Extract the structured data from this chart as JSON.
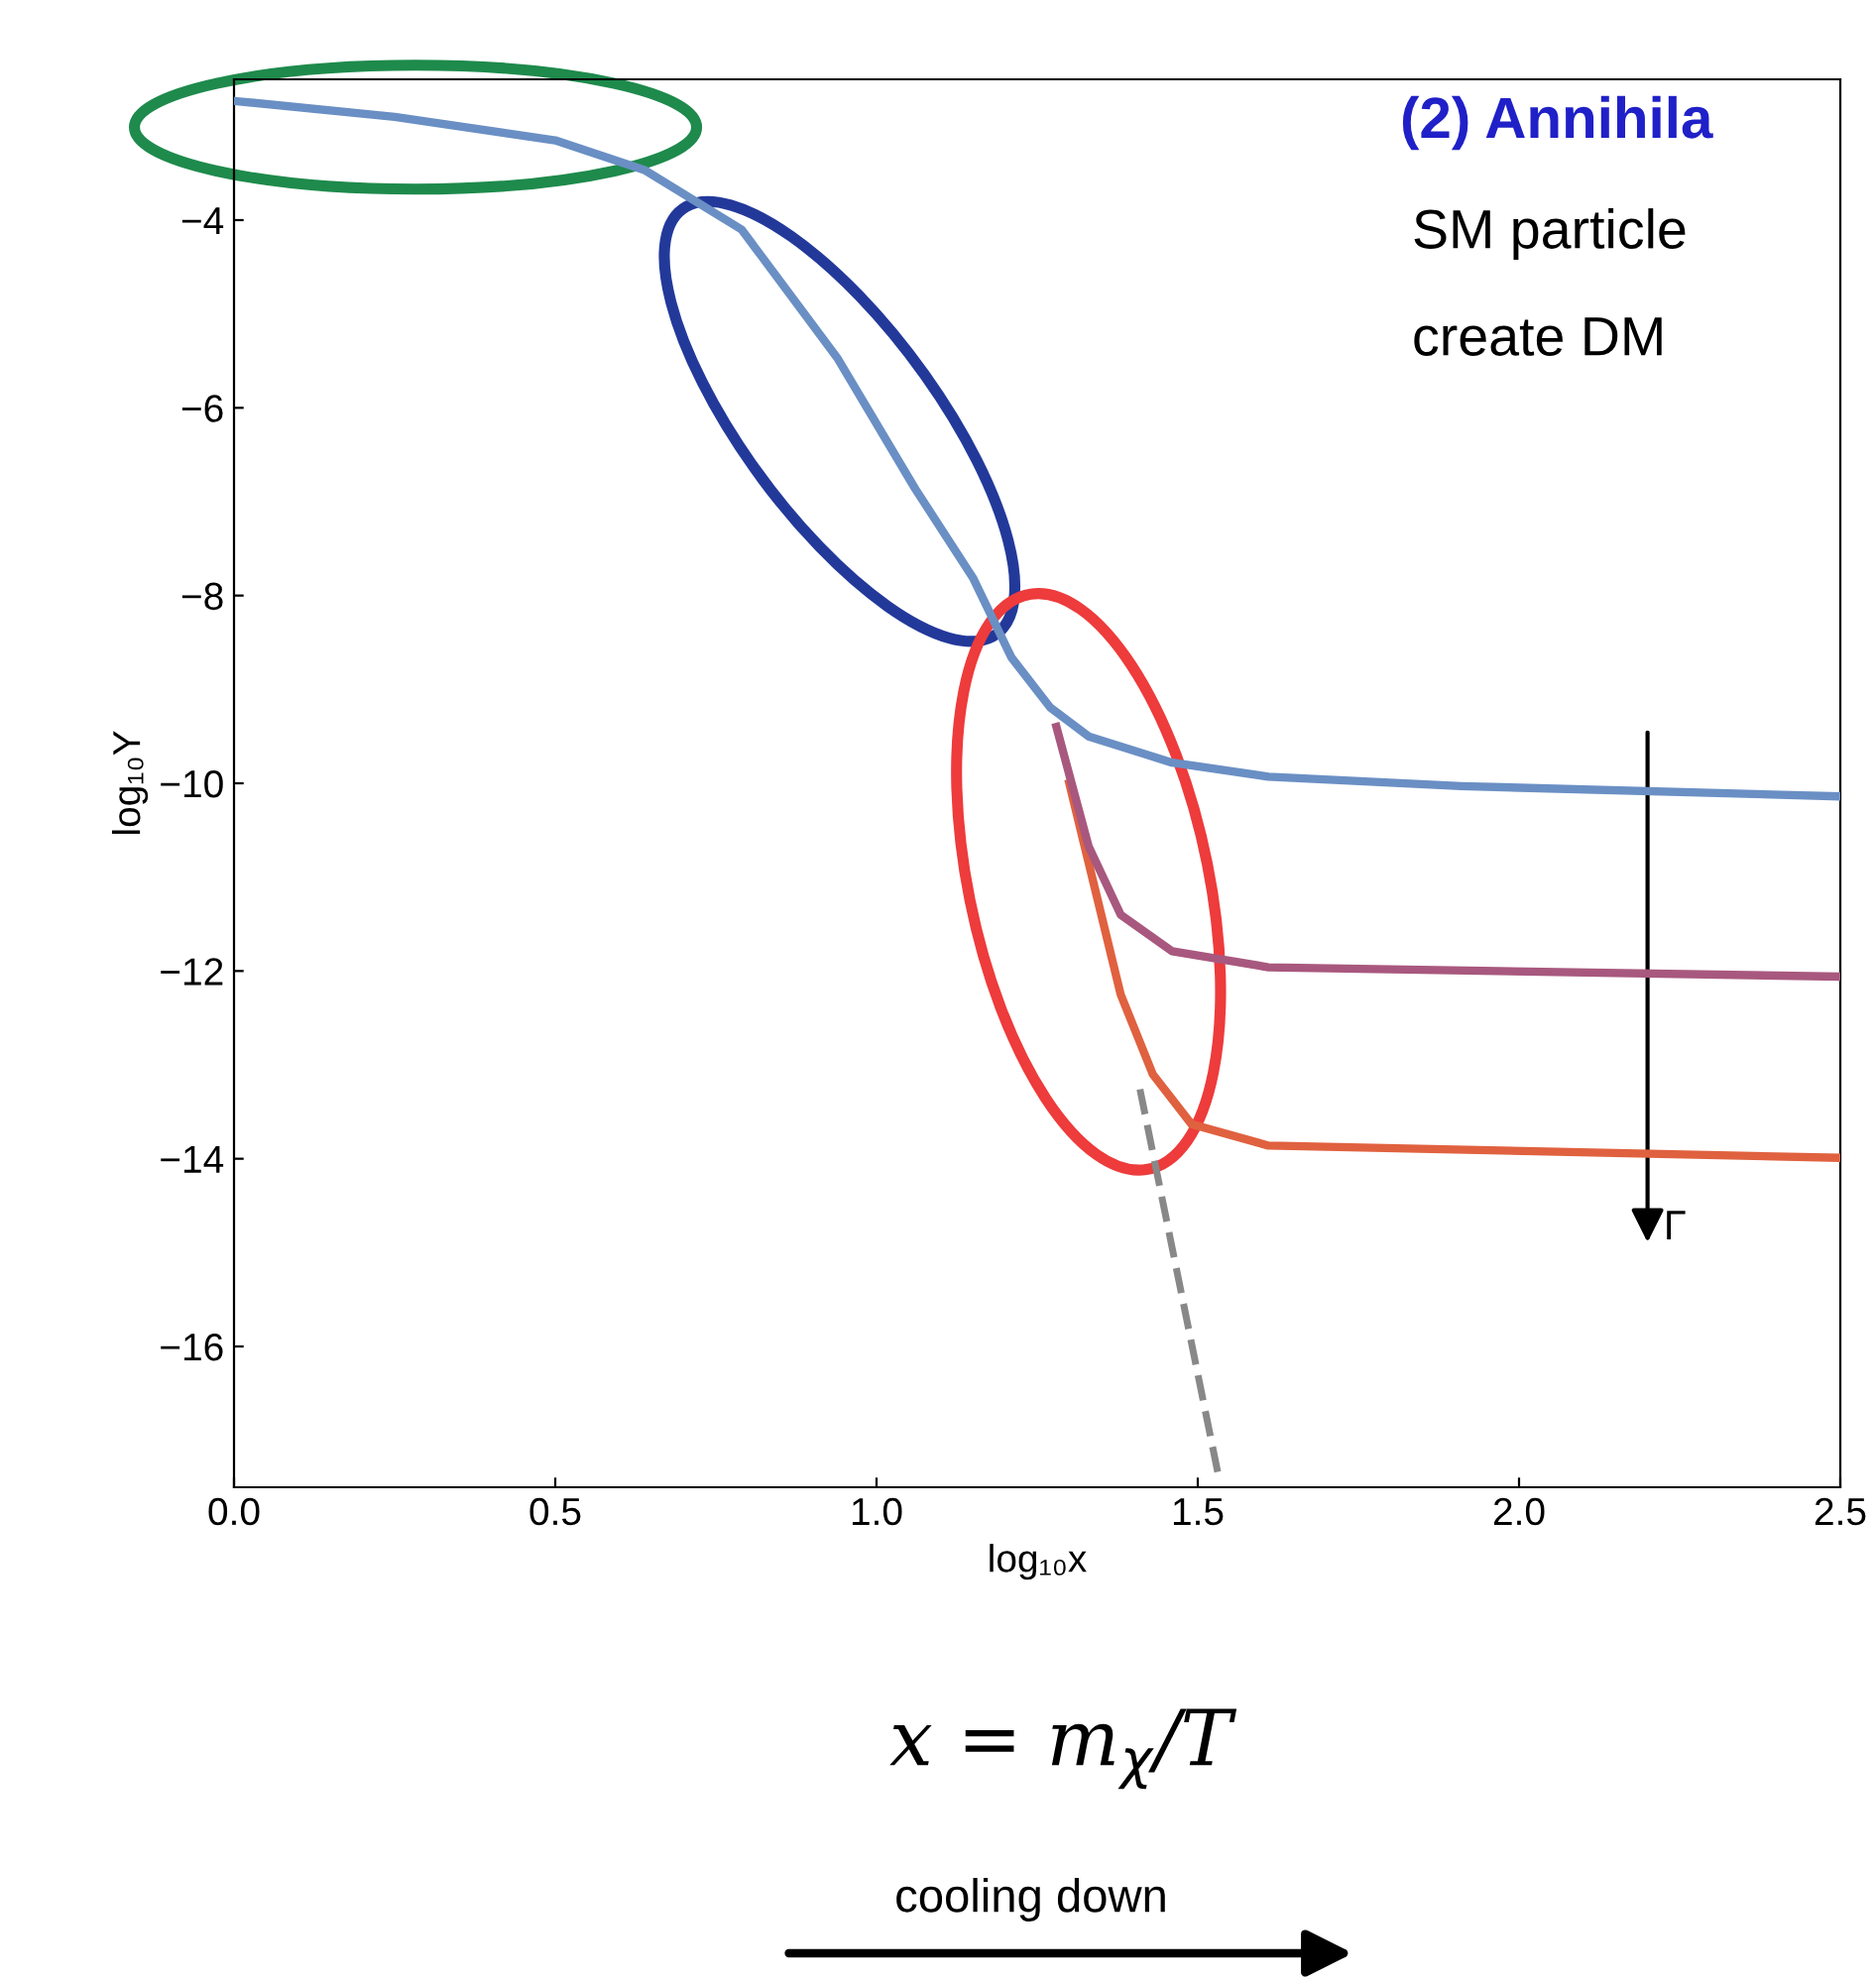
{
  "chart_data": {
    "type": "line",
    "xlabel": "log₁₀x",
    "ylabel": "log₁₀Y",
    "xlim": [
      0,
      2.5
    ],
    "xticks": [
      {
        "value": 0,
        "label": "0.0"
      },
      {
        "value": 0.5,
        "label": "0.5"
      },
      {
        "value": 1,
        "label": "1.0"
      },
      {
        "value": 1.5,
        "label": "1.5"
      },
      {
        "value": 2,
        "label": "2.0"
      },
      {
        "value": 2.5,
        "label": "2.5"
      }
    ],
    "ylim": [
      -17.5,
      -2.5
    ],
    "yticks": [
      {
        "value": -4,
        "label": "−4"
      },
      {
        "value": -6,
        "label": "−6"
      },
      {
        "value": -8,
        "label": "−8"
      },
      {
        "value": -10,
        "label": "−10"
      },
      {
        "value": -12,
        "label": "−12"
      },
      {
        "value": -14,
        "label": "−14"
      },
      {
        "value": -16,
        "label": "−16"
      }
    ],
    "grid": false,
    "series": [
      {
        "color": "#6a8fc4",
        "line_style": "solid",
        "x": [
          0,
          0.25,
          0.5,
          0.64,
          0.79,
          0.94,
          1.06,
          1.15,
          1.21,
          1.27,
          1.33,
          1.46,
          1.61,
          1.91,
          2.5
        ],
        "values": [
          -2.73,
          -2.9,
          -3.15,
          -3.47,
          -4.1,
          -5.48,
          -6.86,
          -7.81,
          -8.66,
          -9.19,
          -9.5,
          -9.78,
          -9.93,
          -10.03,
          -10.14
        ]
      },
      {
        "color": "#a8587e",
        "line_style": "solid",
        "x": [
          1.28,
          1.33,
          1.38,
          1.46,
          1.61,
          2.5
        ],
        "values": [
          -9.4,
          -10.67,
          -11.4,
          -11.79,
          -11.96,
          -12.06
        ]
      },
      {
        "color": "#e0613f",
        "line_style": "solid",
        "x": [
          1.3,
          1.38,
          1.43,
          1.49,
          1.61,
          2.5
        ],
        "values": [
          -10.0,
          -12.25,
          -13.1,
          -13.63,
          -13.86,
          -13.99
        ]
      },
      {
        "color": "#888888",
        "line_style": "dashed",
        "x": [
          1.41,
          1.534
        ],
        "values": [
          -13.26,
          -17.44
        ]
      }
    ],
    "annotations": [
      "Γ",
      "(2) Annihila",
      "SM particle",
      "create DM",
      "x = m$_{χ}$/T",
      "cooling down"
    ]
  }
}
